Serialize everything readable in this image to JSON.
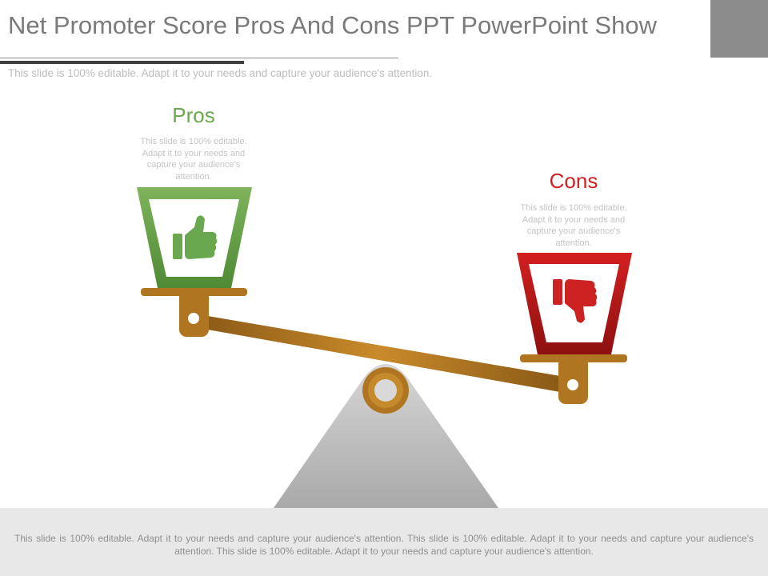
{
  "slide": {
    "title": "Net Promoter Score Pros And Cons PPT PowerPoint Show",
    "subtitle": "This slide is 100% editable. Adapt it to your needs and capture your audience's attention."
  },
  "pros": {
    "heading": "Pros",
    "description": "This slide is 100% editable. Adapt it to your needs and capture your audience's attention.",
    "icon": "thumbs-up-icon",
    "color": "#6aa84f"
  },
  "cons": {
    "heading": "Cons",
    "description": "This slide is 100% editable. Adapt it to your needs and capture your audience's attention.",
    "icon": "thumbs-down-icon",
    "color": "#cc2222"
  },
  "footer": {
    "text": "This slide is 100% editable. Adapt it to your needs and capture your audience's attention. This slide is 100% editable. Adapt it to your needs and capture your audience's attention. This slide is 100% editable. Adapt it to your needs and capture your audience's attention."
  },
  "colors": {
    "beam": "#b87d22",
    "stand": "#c2c2c2",
    "accent_box": "#8c8c8c"
  }
}
